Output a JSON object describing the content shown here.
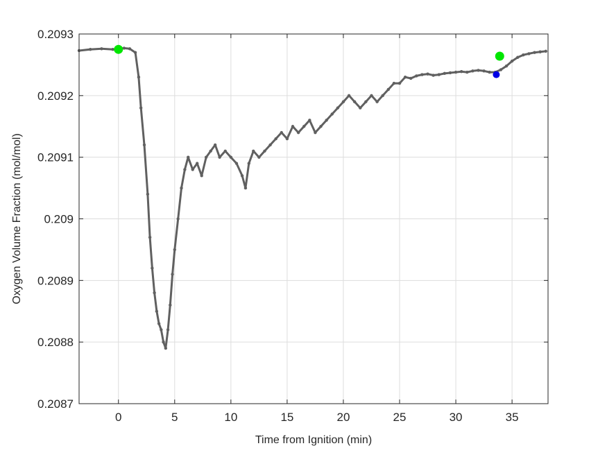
{
  "chart_data": {
    "type": "line",
    "title": "",
    "xlabel": "Time from Ignition (min)",
    "ylabel": "Oxygen Volume Fraction (mol/mol)",
    "xlim": [
      -3.5,
      38.2
    ],
    "ylim": [
      0.2087,
      0.2093
    ],
    "xticks": [
      0,
      5,
      10,
      15,
      20,
      25,
      30,
      35
    ],
    "xtick_labels": [
      "0",
      "5",
      "10",
      "15",
      "20",
      "25",
      "30",
      "35"
    ],
    "yticks": [
      0.2087,
      0.2088,
      0.2089,
      0.209,
      0.2091,
      0.2092,
      0.2093
    ],
    "ytick_labels": [
      "0.2087",
      "0.2088",
      "0.2089",
      "0.209",
      "0.2091",
      "0.2092",
      "0.2093"
    ],
    "grid": true,
    "series": [
      {
        "color": "#606060",
        "marker": "dot",
        "x": [
          -3.5,
          -2.5,
          -1.5,
          -0.5,
          0.5,
          1.0,
          1.5,
          1.8,
          2.0,
          2.3,
          2.6,
          2.8,
          3.0,
          3.2,
          3.4,
          3.6,
          3.8,
          4.0,
          4.2,
          4.4,
          4.6,
          4.8,
          5.0,
          5.3,
          5.6,
          5.9,
          6.2,
          6.6,
          7.0,
          7.4,
          7.8,
          8.2,
          8.6,
          9.0,
          9.5,
          10.0,
          10.5,
          11.0,
          11.3,
          11.6,
          12.0,
          12.5,
          13.0,
          13.5,
          14.0,
          14.5,
          15.0,
          15.5,
          16.0,
          16.5,
          17.0,
          17.5,
          18.0,
          18.5,
          19.0,
          19.5,
          20.0,
          20.5,
          21.0,
          21.5,
          22.0,
          22.5,
          23.0,
          23.5,
          24.0,
          24.5,
          25.0,
          25.5,
          26.0,
          26.5,
          27.0,
          27.5,
          28.0,
          28.5,
          29.0,
          29.5,
          30.0,
          30.5,
          31.0,
          31.5,
          32.0,
          32.5,
          33.0,
          33.5,
          34.0,
          34.5,
          35.0,
          35.5,
          36.0,
          36.5,
          37.0,
          37.5,
          38.0
        ],
        "y": [
          0.209273,
          0.209275,
          0.209276,
          0.209275,
          0.209277,
          0.209276,
          0.20927,
          0.20923,
          0.20918,
          0.20912,
          0.20904,
          0.20897,
          0.20892,
          0.20888,
          0.20885,
          0.20883,
          0.20882,
          0.2088,
          0.20879,
          0.20882,
          0.20886,
          0.20891,
          0.20895,
          0.209,
          0.20905,
          0.20908,
          0.2091,
          0.20908,
          0.20909,
          0.20907,
          0.2091,
          0.20911,
          0.20912,
          0.2091,
          0.20911,
          0.2091,
          0.20909,
          0.20907,
          0.20905,
          0.20909,
          0.20911,
          0.2091,
          0.20911,
          0.20912,
          0.20913,
          0.20914,
          0.20913,
          0.20915,
          0.20914,
          0.20915,
          0.20916,
          0.20914,
          0.20915,
          0.20916,
          0.20917,
          0.20918,
          0.20919,
          0.2092,
          0.20919,
          0.20918,
          0.20919,
          0.2092,
          0.20919,
          0.2092,
          0.20921,
          0.20922,
          0.20922,
          0.20923,
          0.209228,
          0.209232,
          0.209234,
          0.209235,
          0.209233,
          0.209234,
          0.209236,
          0.209237,
          0.209238,
          0.209239,
          0.209238,
          0.20924,
          0.209241,
          0.20924,
          0.209238,
          0.209238,
          0.209242,
          0.209248,
          0.209256,
          0.209262,
          0.209266,
          0.209268,
          0.20927,
          0.209271,
          0.209272
        ]
      }
    ],
    "markers": [
      {
        "x": 0.0,
        "y": 0.209275,
        "color": "#00e600",
        "size": "large"
      },
      {
        "x": 33.9,
        "y": 0.209264,
        "color": "#00e600",
        "size": "large"
      },
      {
        "x": 33.6,
        "y": 0.209234,
        "color": "#0000e6",
        "size": "small"
      }
    ]
  }
}
